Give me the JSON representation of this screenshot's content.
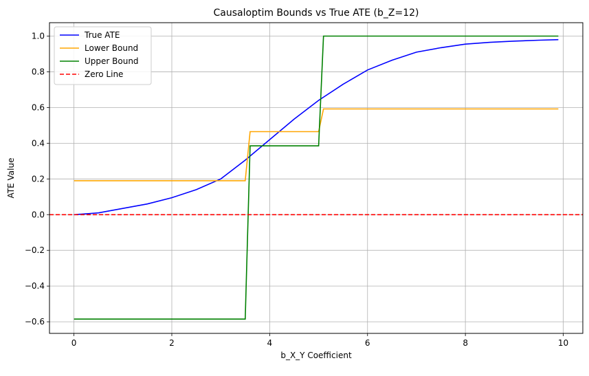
{
  "chart_data": {
    "type": "line",
    "title": "Causaloptim Bounds vs True ATE (b_Z=12)",
    "xlabel": "b_X_Y Coefficient",
    "ylabel": "ATE Value",
    "xlim": [
      -0.5,
      10.4
    ],
    "ylim": [
      -0.665,
      1.075
    ],
    "xticks": [
      0,
      2,
      4,
      6,
      8,
      10
    ],
    "yticks": [
      -0.6,
      -0.4,
      -0.2,
      0.0,
      0.2,
      0.4,
      0.6,
      0.8,
      1.0
    ],
    "xtick_labels": [
      "0",
      "2",
      "4",
      "6",
      "8",
      "10"
    ],
    "ytick_labels": [
      "−0.6",
      "−0.4",
      "−0.2",
      "0.0",
      "0.2",
      "0.4",
      "0.6",
      "0.8",
      "1.0"
    ],
    "grid": true,
    "legend_position": "top-left",
    "series": [
      {
        "name": "True ATE",
        "color": "#0000ff",
        "style": "solid",
        "x": [
          0,
          0.5,
          1,
          1.5,
          2,
          2.5,
          3,
          3.5,
          4,
          4.5,
          5,
          5.5,
          6,
          6.5,
          7,
          7.5,
          8,
          8.5,
          9,
          9.5,
          9.9
        ],
        "y": [
          0.0,
          0.01,
          0.035,
          0.06,
          0.095,
          0.14,
          0.2,
          0.305,
          0.42,
          0.535,
          0.64,
          0.73,
          0.81,
          0.865,
          0.91,
          0.935,
          0.955,
          0.965,
          0.972,
          0.977,
          0.98
        ]
      },
      {
        "name": "Lower Bound",
        "color": "#ffa500",
        "style": "solid",
        "x": [
          0,
          3.5,
          3.6,
          5.0,
          5.1,
          9.9
        ],
        "y": [
          0.19,
          0.19,
          0.465,
          0.465,
          0.592,
          0.592
        ]
      },
      {
        "name": "Upper Bound",
        "color": "#008000",
        "style": "solid",
        "x": [
          0,
          3.5,
          3.6,
          5.0,
          5.1,
          9.9
        ],
        "y": [
          -0.585,
          -0.585,
          0.385,
          0.385,
          1.0,
          1.0
        ]
      },
      {
        "name": "Zero Line",
        "color": "#ff0000",
        "style": "dashed",
        "x": [
          -0.5,
          10.4
        ],
        "y": [
          0,
          0
        ]
      }
    ]
  }
}
